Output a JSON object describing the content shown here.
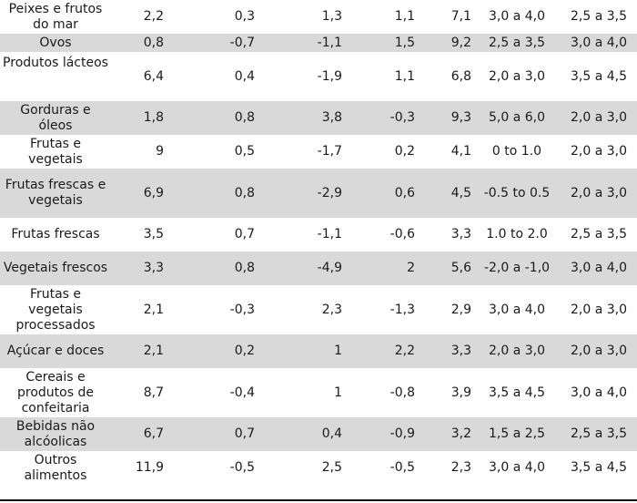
{
  "table": {
    "rows": [
      {
        "category": "Peixes e frutos do mar",
        "values": [
          "2,2",
          "0,3",
          "1,3",
          "1,1",
          "7,1"
        ],
        "range1": "3,0 a 4,0",
        "range2": "2,5 a 3,5"
      },
      {
        "category": "Ovos",
        "values": [
          "0,8",
          "-0,7",
          "-1,1",
          "1,5",
          "9,2"
        ],
        "range1": "2,5 a 3,5",
        "range2": "3,0 a 4,0"
      },
      {
        "category": "Produtos lácteos",
        "values": [
          "6,4",
          "0,4",
          "-1,9",
          "1,1",
          "6,8"
        ],
        "range1": "2,0 a 3,0",
        "range2": "3,5 a 4,5"
      },
      {
        "category": "Gorduras e óleos",
        "values": [
          "1,8",
          "0,8",
          "3,8",
          "-0,3",
          "9,3"
        ],
        "range1": "5,0 a 6,0",
        "range2": "2,0 a 3,0"
      },
      {
        "category": "Frutas e vegetais",
        "values": [
          "9",
          "0,5",
          "-1,7",
          "0,2",
          "4,1"
        ],
        "range1": "0 to 1.0",
        "range2": "2,0 a 3,0"
      },
      {
        "category": "Frutas frescas e vegetais",
        "values": [
          "6,9",
          "0,8",
          "-2,9",
          "0,6",
          "4,5"
        ],
        "range1": "-0.5 to 0.5",
        "range2": "2,0 a 3,0"
      },
      {
        "category": "Frutas frescas",
        "values": [
          "3,5",
          "0,7",
          "-1,1",
          "-0,6",
          "3,3"
        ],
        "range1": "1.0 to 2.0",
        "range2": "2,5 a 3,5"
      },
      {
        "category": "Vegetais frescos",
        "values": [
          "3,3",
          "0,8",
          "-4,9",
          "2",
          "5,6"
        ],
        "range1": "-2,0 a -1,0",
        "range2": "3,0 a 4,0"
      },
      {
        "category": "Frutas e vegetais processados",
        "values": [
          "2,1",
          "-0,3",
          "2,3",
          "-1,3",
          "2,9"
        ],
        "range1": "3,0 a 4,0",
        "range2": "2,0 a 3,0"
      },
      {
        "category": "Açúcar e doces",
        "values": [
          "2,1",
          "0,2",
          "1",
          "2,2",
          "3,3"
        ],
        "range1": "2,0 a 3,0",
        "range2": "2,0 a 3,0"
      },
      {
        "category": "Cereais e produtos de confeitaria",
        "values": [
          "8,7",
          "-0,4",
          "1",
          "-0,8",
          "3,9"
        ],
        "range1": "3,5 a 4,5",
        "range2": "3,0 a 4,0"
      },
      {
        "category": "Bebidas não alcóolicas",
        "values": [
          "6,7",
          "0,7",
          "0,4",
          "-0,9",
          "3,2"
        ],
        "range1": "1,5 a 2,5",
        "range2": "2,5 a 3,5"
      },
      {
        "category": "Outros alimentos",
        "values": [
          "11,9",
          "-0,5",
          "2,5",
          "-0,5",
          "2,3"
        ],
        "range1": "3,0 a 4,0",
        "range2": "3,5 a 4,5"
      }
    ]
  },
  "colors": {
    "shade": "#d9d9d9",
    "text": "#1a1a1a",
    "rule": "#111111"
  }
}
